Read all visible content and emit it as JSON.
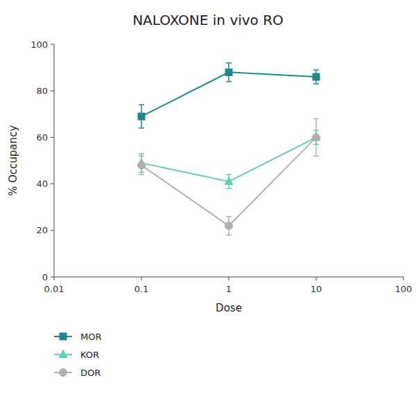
{
  "chart_data": {
    "type": "line",
    "title": "NALOXONE in vivo RO",
    "xlabel": "Dose",
    "ylabel": "% Occupancy",
    "log": "x",
    "x": [
      0.1,
      1,
      10
    ],
    "xlim": [
      0.01,
      100
    ],
    "xticks": [
      0.01,
      0.1,
      1,
      10,
      100
    ],
    "ylim": [
      0,
      100
    ],
    "yticks": [
      0,
      20,
      40,
      60,
      80,
      100
    ],
    "grid": false,
    "legend": "bottom",
    "series": [
      {
        "name": "MOR",
        "color": "#1a8a8a",
        "marker": "square",
        "values": [
          69,
          88,
          86
        ],
        "errors": [
          5,
          4,
          3
        ]
      },
      {
        "name": "KOR",
        "color": "#5ecfb1",
        "marker": "triangle",
        "values": [
          49,
          41,
          60
        ],
        "errors": [
          4,
          3,
          3
        ]
      },
      {
        "name": "DOR",
        "color": "#b0b0b0",
        "marker": "circle",
        "values": [
          48,
          22,
          60
        ],
        "errors": [
          4,
          4,
          8
        ]
      }
    ]
  }
}
